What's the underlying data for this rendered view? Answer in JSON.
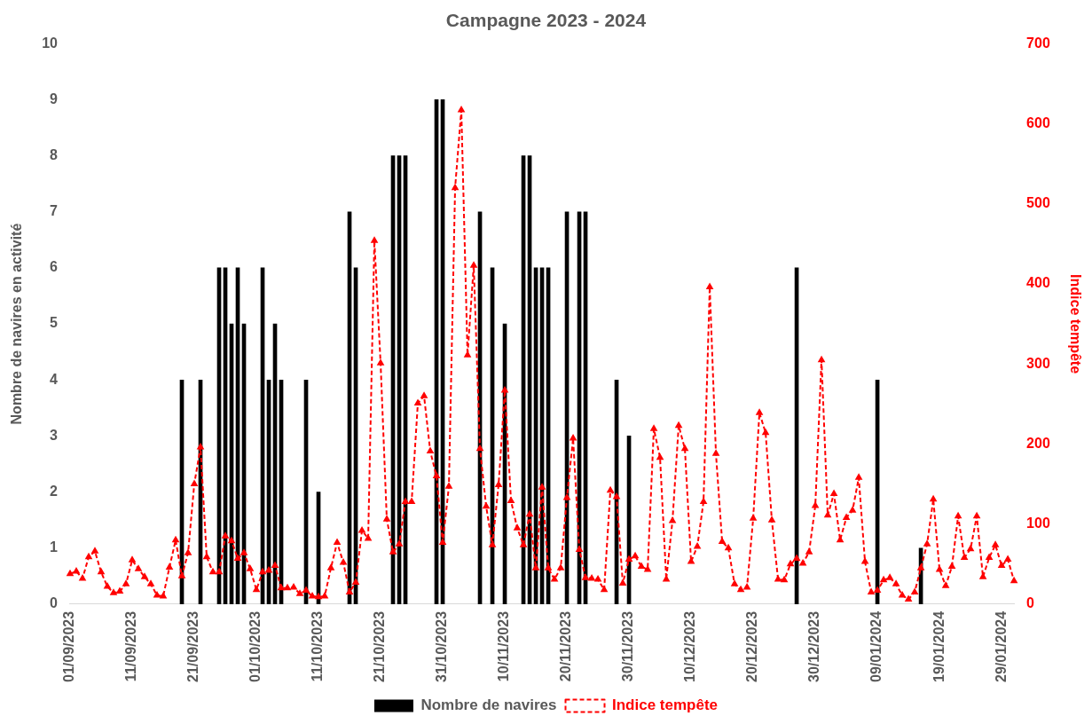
{
  "chart_data": {
    "type": "bar",
    "title": "Campagne 2023 - 2024",
    "ylabel": "Nombre de navires en activité",
    "y2label": "Indice tempête",
    "categories": [
      "01/09/2023",
      null,
      null,
      null,
      null,
      null,
      null,
      null,
      null,
      null,
      "11/09/2023",
      null,
      null,
      null,
      null,
      null,
      null,
      null,
      null,
      null,
      "21/09/2023",
      null,
      null,
      null,
      null,
      null,
      null,
      null,
      null,
      null,
      "01/10/2023",
      null,
      null,
      null,
      null,
      null,
      null,
      null,
      null,
      null,
      "11/10/2023",
      null,
      null,
      null,
      null,
      null,
      null,
      null,
      null,
      null,
      "21/10/2023",
      null,
      null,
      null,
      null,
      null,
      null,
      null,
      null,
      null,
      "31/10/2023",
      null,
      null,
      null,
      null,
      null,
      null,
      null,
      null,
      null,
      "10/11/2023",
      null,
      null,
      null,
      null,
      null,
      null,
      null,
      null,
      null,
      "20/11/2023",
      null,
      null,
      null,
      null,
      null,
      null,
      null,
      null,
      null,
      "30/11/2023",
      null,
      null,
      null,
      null,
      null,
      null,
      null,
      null,
      null,
      "10/12/2023",
      null,
      null,
      null,
      null,
      null,
      null,
      null,
      null,
      null,
      "20/12/2023",
      null,
      null,
      null,
      null,
      null,
      null,
      null,
      null,
      null,
      "30/12/2023",
      null,
      null,
      null,
      null,
      null,
      null,
      null,
      null,
      null,
      "09/01/2024",
      null,
      null,
      null,
      null,
      null,
      null,
      null,
      null,
      null,
      "19/01/2024",
      null,
      null,
      null,
      null,
      null,
      null,
      null,
      null,
      null,
      "29/01/2024",
      null,
      null
    ],
    "series": [
      {
        "name": "Nombre de navires",
        "color": "#000000",
        "values": [
          null,
          null,
          null,
          null,
          null,
          null,
          null,
          null,
          null,
          null,
          null,
          null,
          null,
          null,
          null,
          null,
          null,
          null,
          4,
          null,
          null,
          4,
          null,
          null,
          6,
          6,
          5,
          6,
          5,
          null,
          null,
          6,
          4,
          5,
          4,
          null,
          null,
          null,
          4,
          null,
          2,
          null,
          null,
          null,
          null,
          7,
          6,
          null,
          null,
          null,
          null,
          null,
          8,
          8,
          8,
          null,
          null,
          null,
          null,
          9,
          9,
          null,
          null,
          null,
          null,
          null,
          7,
          null,
          6,
          null,
          5,
          null,
          null,
          8,
          8,
          6,
          6,
          6,
          null,
          null,
          7,
          null,
          7,
          7,
          null,
          null,
          null,
          null,
          4,
          null,
          3,
          null,
          null,
          null,
          null,
          null,
          null,
          null,
          null,
          null,
          null,
          null,
          null,
          null,
          null,
          null,
          null,
          null,
          null,
          null,
          null,
          null,
          null,
          null,
          null,
          null,
          null,
          6,
          null,
          null,
          null,
          null,
          null,
          null,
          null,
          null,
          null,
          null,
          null,
          null,
          4,
          null,
          null,
          null,
          null,
          null,
          null,
          1,
          null,
          null,
          null,
          null,
          null,
          null,
          null,
          null,
          null,
          null,
          null,
          null,
          null,
          null,
          null
        ]
      },
      {
        "name": "Indice tempête",
        "type": "line",
        "axis": "y2",
        "color": "#ff0000",
        "marker": "triangle",
        "line_style": "dashed",
        "values": [
          38,
          41,
          32,
          59,
          66,
          40,
          22,
          14,
          16,
          25,
          55,
          44,
          34,
          25,
          11,
          10,
          46,
          80,
          35,
          64,
          150,
          196,
          59,
          40,
          40,
          85,
          79,
          57,
          64,
          44,
          18,
          40,
          42,
          48,
          20,
          20,
          21,
          13,
          17,
          10,
          9,
          10,
          45,
          77,
          52,
          15,
          27,
          92,
          82,
          454,
          301,
          106,
          65,
          75,
          128,
          128,
          251,
          260,
          191,
          160,
          77,
          147,
          520,
          617,
          311,
          423,
          194,
          122,
          74,
          149,
          267,
          129,
          95,
          74,
          112,
          45,
          146,
          45,
          31,
          45,
          133,
          207,
          68,
          33,
          32,
          31,
          18,
          142,
          134,
          26,
          56,
          60,
          47,
          43,
          219,
          183,
          31,
          104,
          223,
          194,
          53,
          72,
          128,
          396,
          188,
          78,
          70,
          25,
          18,
          21,
          107,
          239,
          214,
          105,
          31,
          30,
          50,
          57,
          51,
          65,
          123,
          305,
          111,
          138,
          80,
          108,
          117,
          158,
          53,
          15,
          17,
          30,
          33,
          25,
          11,
          6,
          15,
          45,
          75,
          131,
          43,
          23,
          47,
          110,
          58,
          69,
          110,
          34,
          58,
          74,
          48,
          56,
          29
        ]
      }
    ],
    "ylim": [
      0,
      10
    ],
    "yticks": [
      0,
      1,
      2,
      3,
      4,
      5,
      6,
      7,
      8,
      9,
      10
    ],
    "y2lim": [
      0,
      700
    ],
    "y2ticks": [
      0,
      100,
      200,
      300,
      400,
      500,
      600,
      700
    ],
    "grid": false,
    "legend": "bottom"
  }
}
